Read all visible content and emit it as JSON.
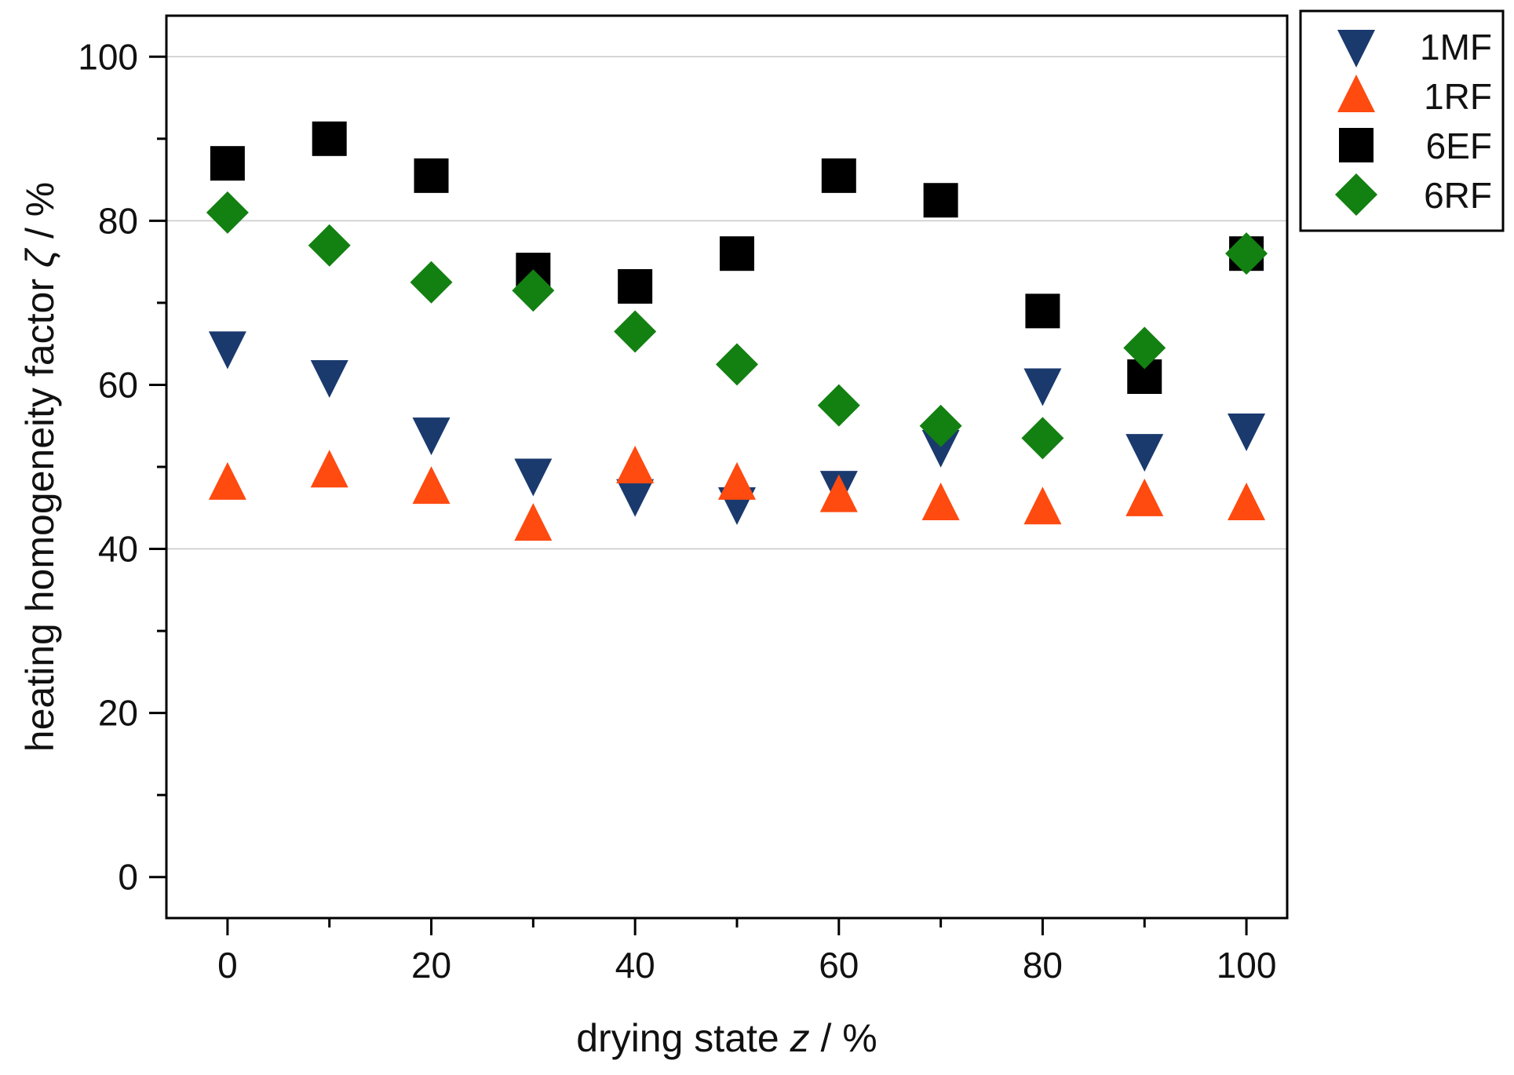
{
  "chart_data": {
    "type": "scatter",
    "title": "",
    "xlabel": "drying state z / %",
    "xlabel_parts": {
      "prefix": "drying state ",
      "var": "z",
      "suffix": " / %"
    },
    "ylabel": "heating homogeneity factor ζ / %",
    "ylabel_parts": {
      "prefix": "heating homogeneity factor ",
      "var": "ζ",
      "suffix": " / %"
    },
    "xlim": [
      -6,
      104
    ],
    "ylim": [
      -5,
      105
    ],
    "xticks": [
      0,
      20,
      40,
      60,
      80,
      100
    ],
    "yticks": [
      0,
      20,
      40,
      60,
      80,
      100
    ],
    "grid_y": [
      40,
      80,
      100
    ],
    "legend_position": "outside-top-right",
    "series": [
      {
        "name": "1MF",
        "marker": "triangle-down",
        "color": "#1a3a6e",
        "x": [
          0,
          10,
          20,
          30,
          40,
          50,
          60,
          70,
          80,
          90,
          100
        ],
        "y": [
          64.5,
          61,
          54,
          49,
          46.5,
          45.5,
          47.5,
          52.5,
          60,
          52,
          54.5
        ]
      },
      {
        "name": "1RF",
        "marker": "triangle-up",
        "color": "#ff4a10",
        "x": [
          0,
          10,
          20,
          30,
          40,
          50,
          60,
          70,
          80,
          90,
          100
        ],
        "y": [
          48,
          49.5,
          47.5,
          43,
          50,
          48,
          46.5,
          45.5,
          45,
          46,
          45.5
        ]
      },
      {
        "name": "6EF",
        "marker": "square",
        "color": "#000000",
        "x": [
          0,
          10,
          20,
          30,
          40,
          50,
          60,
          70,
          80,
          90,
          100
        ],
        "y": [
          87,
          90,
          85.5,
          74,
          72,
          76,
          85.5,
          82.5,
          69,
          61,
          76
        ]
      },
      {
        "name": "6RF",
        "marker": "diamond",
        "color": "#138012",
        "x": [
          0,
          10,
          20,
          30,
          40,
          50,
          60,
          70,
          80,
          90,
          100
        ],
        "y": [
          81,
          77,
          72.5,
          71.5,
          66.5,
          62.5,
          57.5,
          55,
          53.5,
          64.5,
          76
        ]
      }
    ]
  }
}
